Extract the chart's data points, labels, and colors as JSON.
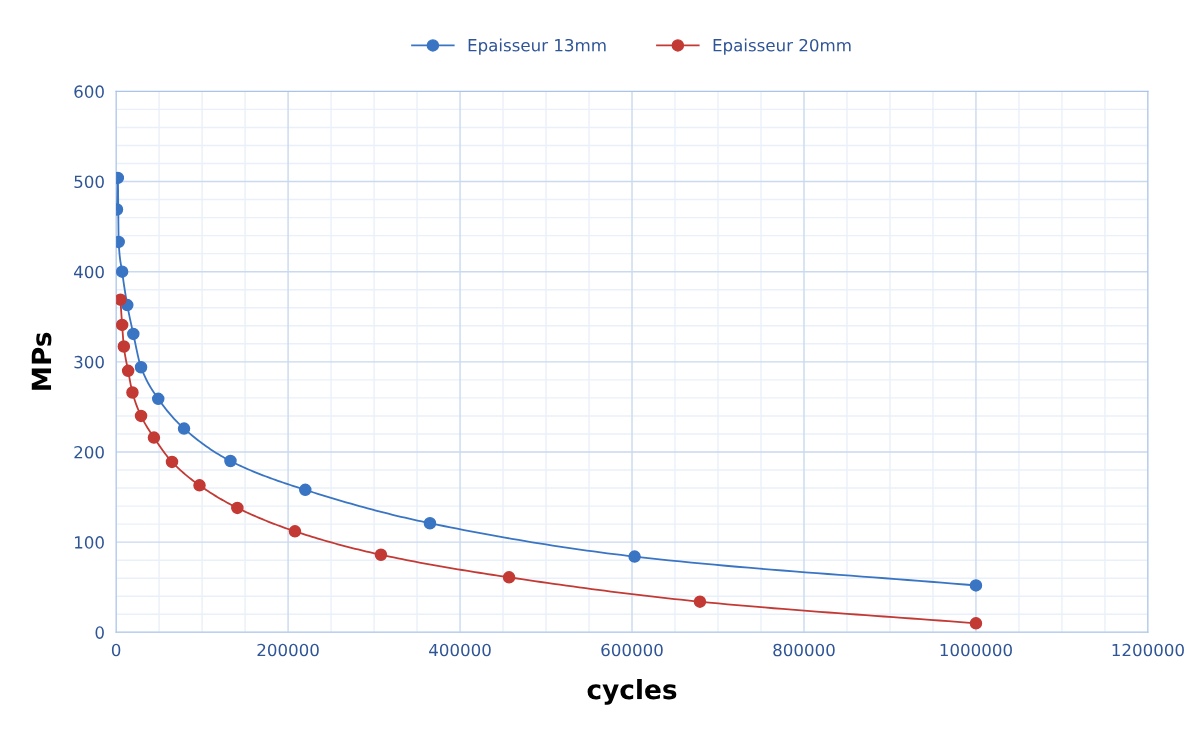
{
  "chart_data": {
    "type": "line",
    "xlabel": "cycles",
    "ylabel": "MPs",
    "xlim": [
      0,
      1200000
    ],
    "ylim": [
      0,
      600
    ],
    "xticks": [
      0,
      200000,
      400000,
      600000,
      800000,
      1000000,
      1200000
    ],
    "yticks": [
      0,
      100,
      200,
      300,
      400,
      500,
      600
    ],
    "grid": true,
    "legend": "top",
    "marker": "circle",
    "line_style": "solid",
    "series": [
      {
        "name": "Epaisseur 13mm",
        "color": "#3a75c4",
        "x": [
          1000,
          2000,
          3000,
          7000,
          13000,
          20000,
          29000,
          49000,
          79000,
          133000,
          220000,
          365000,
          603000,
          1000000
        ],
        "values": [
          469,
          504,
          433,
          400,
          363,
          331,
          294,
          259,
          226,
          190,
          158,
          121,
          84,
          52
        ]
      },
      {
        "name": "Epaisseur 20mm",
        "color": "#c33a35",
        "x": [
          5000,
          7000,
          9000,
          14000,
          19000,
          29000,
          44000,
          65000,
          97000,
          141000,
          208000,
          308000,
          457000,
          679000,
          1000000
        ],
        "values": [
          369,
          341,
          317,
          290,
          266,
          240,
          216,
          189,
          163,
          138,
          112,
          86,
          61,
          34,
          10
        ]
      }
    ]
  }
}
